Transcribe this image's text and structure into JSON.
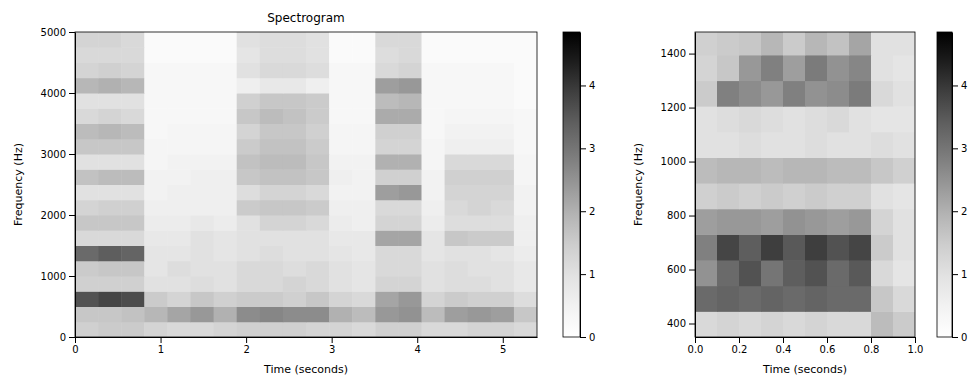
{
  "chart_data": [
    {
      "type": "heatmap",
      "title": "Spectrogram",
      "x_label": "Time (seconds)",
      "y_label": "Frequency (Hz)",
      "xlim": [
        0,
        5.4
      ],
      "ylim": [
        0,
        5000
      ],
      "xticks": [
        0,
        1,
        2,
        3,
        4,
        5
      ],
      "yticks": [
        0,
        1000,
        2000,
        3000,
        4000,
        5000
      ],
      "x_bins": [
        0,
        0.27,
        0.54,
        0.81,
        1.08,
        1.35,
        1.62,
        1.89,
        2.16,
        2.43,
        2.7,
        2.97,
        3.24,
        3.51,
        3.78,
        4.05,
        4.32,
        4.59,
        4.86,
        5.13,
        5.4
      ],
      "y_bins": [
        0,
        250,
        500,
        750,
        1000,
        1250,
        1500,
        1750,
        2000,
        2250,
        2500,
        2750,
        3000,
        3250,
        3500,
        3750,
        4000,
        4250,
        4500,
        4750,
        5000
      ],
      "cells": [
        [
          1.4,
          1.5,
          1.5,
          1.3,
          1.2,
          1.2,
          1.3,
          1.4,
          1.4,
          1.4,
          1.3,
          1.3,
          1.2,
          1.4,
          1.4,
          1.2,
          1.2,
          1.3,
          1.3,
          1.2
        ],
        [
          1.6,
          1.6,
          1.7,
          1.9,
          2.2,
          2.4,
          2.0,
          2.6,
          2.7,
          2.6,
          2.6,
          2.0,
          1.8,
          2.4,
          2.5,
          1.8,
          2.3,
          2.4,
          2.3,
          1.6
        ],
        [
          3.6,
          3.8,
          3.7,
          1.5,
          1.3,
          1.6,
          1.4,
          1.5,
          1.5,
          1.4,
          1.6,
          1.3,
          1.2,
          2.2,
          2.4,
          1.3,
          1.5,
          1.4,
          1.4,
          1.1
        ],
        [
          1.4,
          1.4,
          1.4,
          1.0,
          1.0,
          1.1,
          1.0,
          1.2,
          1.2,
          1.3,
          1.2,
          1.0,
          0.9,
          1.3,
          1.3,
          1.0,
          1.1,
          1.1,
          1.0,
          0.8
        ],
        [
          1.5,
          1.6,
          1.6,
          0.9,
          1.1,
          1.0,
          1.0,
          1.2,
          1.2,
          1.1,
          1.2,
          1.0,
          0.9,
          1.2,
          1.2,
          1.0,
          1.1,
          1.0,
          1.0,
          0.8
        ],
        [
          3.2,
          3.4,
          3.3,
          0.9,
          0.9,
          1.0,
          0.9,
          1.0,
          1.1,
          1.0,
          1.0,
          0.9,
          0.8,
          1.2,
          1.2,
          0.9,
          1.0,
          1.0,
          0.9,
          0.7
        ],
        [
          1.2,
          1.2,
          1.2,
          0.8,
          0.8,
          1.0,
          0.9,
          1.0,
          1.0,
          1.0,
          1.0,
          0.8,
          0.8,
          2.2,
          2.2,
          0.9,
          1.6,
          1.5,
          1.5,
          0.6
        ],
        [
          1.6,
          1.6,
          1.6,
          0.7,
          0.7,
          0.8,
          0.7,
          1.0,
          1.3,
          1.3,
          1.2,
          0.7,
          0.6,
          1.3,
          1.3,
          0.7,
          1.1,
          1.1,
          1.1,
          0.6
        ],
        [
          1.3,
          1.4,
          1.4,
          0.6,
          0.6,
          0.6,
          0.6,
          1.5,
          1.6,
          1.6,
          1.5,
          0.6,
          0.6,
          1.2,
          1.2,
          0.6,
          1.2,
          1.3,
          1.2,
          0.5
        ],
        [
          1.0,
          1.0,
          1.0,
          0.5,
          0.6,
          0.6,
          0.6,
          1.1,
          1.3,
          1.3,
          1.2,
          0.5,
          0.5,
          2.3,
          2.4,
          0.5,
          1.3,
          1.3,
          1.3,
          0.5
        ],
        [
          1.7,
          1.8,
          1.8,
          0.5,
          0.5,
          0.6,
          0.6,
          1.6,
          1.7,
          1.7,
          1.6,
          0.6,
          0.5,
          1.4,
          1.4,
          0.5,
          1.4,
          1.4,
          1.4,
          0.4
        ],
        [
          1.0,
          1.0,
          1.0,
          0.4,
          0.5,
          0.5,
          0.5,
          1.7,
          1.8,
          1.8,
          1.6,
          0.5,
          0.5,
          2.0,
          2.0,
          0.4,
          1.2,
          1.2,
          1.2,
          0.4
        ],
        [
          1.6,
          1.6,
          1.6,
          0.4,
          0.4,
          0.4,
          0.4,
          1.5,
          1.7,
          1.7,
          1.5,
          0.4,
          0.4,
          1.3,
          1.3,
          0.4,
          0.6,
          0.6,
          0.6,
          0.3
        ],
        [
          1.8,
          1.9,
          1.8,
          0.3,
          0.4,
          0.4,
          0.4,
          1.3,
          1.6,
          1.6,
          1.4,
          0.4,
          0.4,
          1.4,
          1.4,
          0.3,
          0.5,
          0.5,
          0.5,
          0.3
        ],
        [
          1.2,
          1.3,
          1.2,
          0.3,
          0.3,
          0.3,
          0.3,
          1.6,
          1.8,
          1.7,
          1.5,
          0.3,
          0.3,
          2.1,
          2.1,
          0.3,
          0.4,
          0.4,
          0.4,
          0.3
        ],
        [
          1.0,
          1.0,
          1.0,
          0.3,
          0.3,
          0.3,
          0.3,
          1.4,
          1.6,
          1.6,
          1.5,
          0.3,
          0.3,
          1.8,
          1.9,
          0.3,
          0.3,
          0.3,
          0.3,
          0.2
        ],
        [
          1.9,
          2.0,
          1.9,
          0.3,
          0.3,
          0.3,
          0.3,
          0.6,
          0.8,
          0.8,
          0.6,
          0.3,
          0.3,
          2.3,
          2.4,
          0.3,
          0.3,
          0.3,
          0.3,
          0.2
        ],
        [
          1.3,
          1.4,
          1.3,
          0.3,
          0.3,
          0.3,
          0.3,
          1.0,
          1.2,
          1.2,
          1.1,
          0.3,
          0.3,
          1.2,
          1.3,
          0.3,
          0.3,
          0.3,
          0.3,
          0.2
        ],
        [
          1.2,
          1.2,
          1.2,
          0.2,
          0.2,
          0.2,
          0.2,
          0.9,
          1.1,
          1.1,
          1.0,
          0.2,
          0.2,
          1.1,
          1.2,
          0.2,
          0.2,
          0.2,
          0.2,
          0.2
        ],
        [
          1.3,
          1.3,
          1.2,
          0.2,
          0.2,
          0.2,
          0.2,
          1.0,
          1.1,
          1.1,
          1.0,
          0.2,
          0.2,
          1.2,
          1.2,
          0.2,
          0.2,
          0.2,
          0.2,
          0.2
        ]
      ],
      "colorbar": {
        "range": [
          0,
          4.85
        ],
        "ticks": [
          0,
          1,
          2,
          3,
          4
        ]
      }
    },
    {
      "type": "heatmap",
      "x_label": "Time (seconds)",
      "y_label": "Frequency (Hz)",
      "xlim": [
        0,
        1
      ],
      "ylim": [
        350,
        1480
      ],
      "xticks": [
        {
          "value": 0,
          "label": "0.0"
        },
        {
          "value": 0.2,
          "label": "0.2"
        },
        {
          "value": 0.4,
          "label": "0.4"
        },
        {
          "value": 0.6,
          "label": "0.6"
        },
        {
          "value": 0.8,
          "label": "0.8"
        },
        {
          "value": 1,
          "label": "1.0"
        }
      ],
      "yticks": [
        400,
        600,
        800,
        1000,
        1200,
        1400
      ],
      "x_bins": [
        0,
        0.1,
        0.2,
        0.3,
        0.4,
        0.5,
        0.6,
        0.7,
        0.8,
        0.9,
        1
      ],
      "y_bins": [
        350,
        445,
        540,
        635,
        730,
        825,
        920,
        1015,
        1110,
        1205,
        1300,
        1395,
        1480
      ],
      "cells": [
        [
          1.2,
          1.3,
          1.2,
          1.3,
          1.2,
          1.3,
          1.2,
          1.2,
          1.8,
          1.5
        ],
        [
          3.2,
          3.3,
          3.2,
          3.3,
          3.2,
          3.3,
          3.2,
          3.2,
          1.6,
          1.2
        ],
        [
          2.5,
          3.2,
          3.6,
          3.0,
          3.4,
          3.6,
          3.2,
          3.5,
          1.2,
          0.9
        ],
        [
          2.8,
          3.8,
          3.4,
          3.9,
          3.5,
          3.9,
          3.6,
          3.8,
          1.5,
          1.0
        ],
        [
          2.3,
          2.4,
          2.4,
          2.3,
          2.5,
          2.4,
          2.3,
          2.4,
          1.3,
          1.0
        ],
        [
          1.4,
          1.5,
          1.4,
          1.5,
          1.4,
          1.5,
          1.4,
          1.4,
          1.0,
          0.9
        ],
        [
          1.8,
          1.9,
          1.9,
          1.8,
          1.9,
          1.9,
          1.8,
          1.8,
          1.6,
          1.4
        ],
        [
          1.0,
          1.0,
          1.1,
          1.0,
          1.0,
          1.1,
          1.0,
          1.0,
          1.1,
          1.0
        ],
        [
          1.0,
          1.1,
          1.2,
          1.1,
          1.0,
          1.1,
          1.2,
          1.0,
          0.9,
          0.9
        ],
        [
          1.5,
          2.8,
          2.6,
          2.4,
          2.8,
          2.5,
          2.6,
          2.9,
          1.2,
          1.0
        ],
        [
          1.3,
          1.6,
          2.4,
          2.8,
          2.3,
          2.9,
          2.5,
          2.7,
          1.0,
          0.9
        ],
        [
          1.4,
          1.5,
          1.6,
          1.9,
          1.5,
          1.9,
          1.7,
          2.2,
          1.0,
          1.0
        ]
      ],
      "colorbar": {
        "range": [
          0,
          4.85
        ],
        "ticks": [
          0,
          1,
          2,
          3,
          4
        ]
      }
    }
  ]
}
